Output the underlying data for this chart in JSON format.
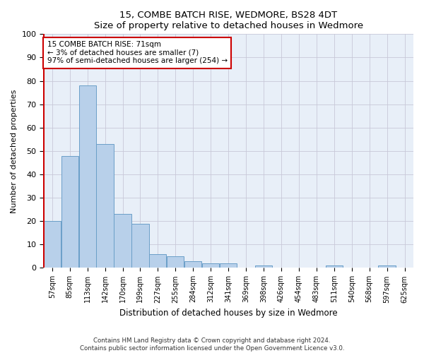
{
  "title": "15, COMBE BATCH RISE, WEDMORE, BS28 4DT",
  "subtitle": "Size of property relative to detached houses in Wedmore",
  "xlabel": "Distribution of detached houses by size in Wedmore",
  "ylabel": "Number of detached properties",
  "categories": [
    "57sqm",
    "85sqm",
    "113sqm",
    "142sqm",
    "170sqm",
    "199sqm",
    "227sqm",
    "255sqm",
    "284sqm",
    "312sqm",
    "341sqm",
    "369sqm",
    "398sqm",
    "426sqm",
    "454sqm",
    "483sqm",
    "511sqm",
    "540sqm",
    "568sqm",
    "597sqm",
    "625sqm"
  ],
  "values": [
    20,
    48,
    78,
    53,
    23,
    19,
    6,
    5,
    3,
    2,
    2,
    0,
    1,
    0,
    0,
    0,
    1,
    0,
    0,
    1,
    0
  ],
  "bar_color": "#b8d0ea",
  "bar_edge_color": "#6a9fc8",
  "annotation_line1": "15 COMBE BATCH RISE: 71sqm",
  "annotation_line2": "← 3% of detached houses are smaller (7)",
  "annotation_line3": "97% of semi-detached houses are larger (254) →",
  "property_line_color": "#cc0000",
  "background_color": "#ffffff",
  "axes_bg_color": "#e8eff8",
  "grid_color": "#c8c8d8",
  "ylim": [
    0,
    100
  ],
  "footer_line1": "Contains HM Land Registry data © Crown copyright and database right 2024.",
  "footer_line2": "Contains public sector information licensed under the Open Government Licence v3.0."
}
